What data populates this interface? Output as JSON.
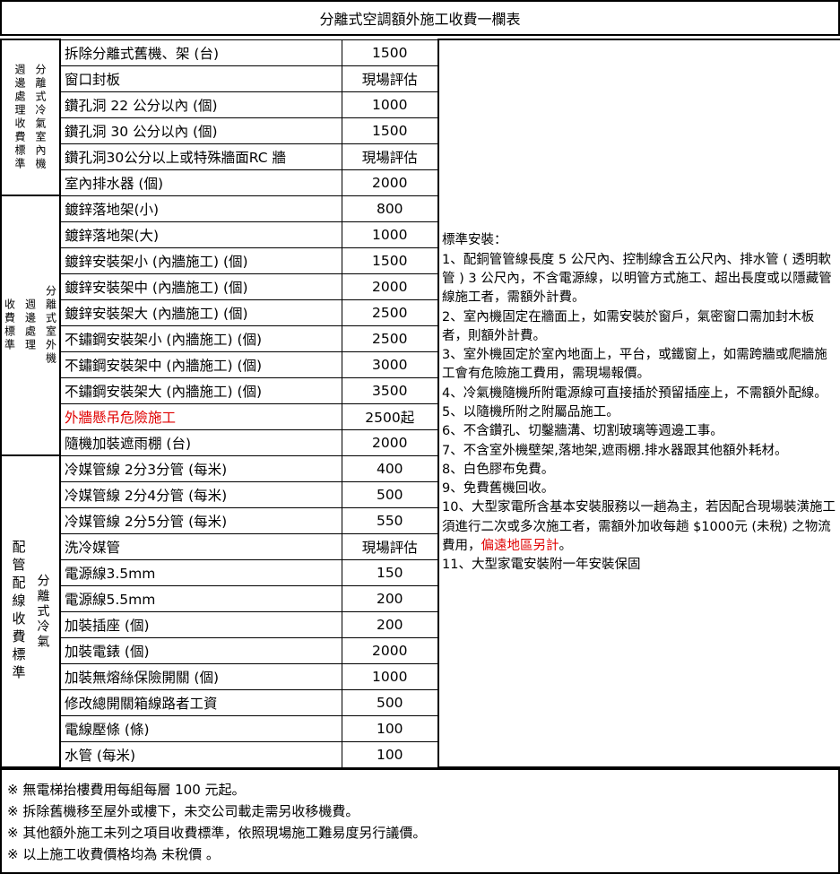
{
  "title": "分離式空調額外施工收費一欄表",
  "groups": [
    {
      "label_cols": [
        "分離式冷氣室內機",
        "週邊處理收費標準"
      ],
      "rows": [
        {
          "item": "拆除分離式舊機、架 (台)",
          "price": "1500"
        },
        {
          "item": "窗口封板",
          "price": "現場評估"
        },
        {
          "item": "鑽孔洞 22 公分以內 (個)",
          "price": "1000"
        },
        {
          "item": "鑽孔洞 30 公分以內 (個)",
          "price": "1500"
        },
        {
          "item": "鑽孔洞30公分以上或特殊牆面RC 牆",
          "price": "現場評估"
        },
        {
          "item": "室內排水器 (個)",
          "price": "2000"
        }
      ]
    },
    {
      "label_cols": [
        "分離式室外機",
        "週邊處理",
        "收費標準"
      ],
      "rows": [
        {
          "item": "鍍鋅落地架(小)",
          "price": "800"
        },
        {
          "item": "鍍鋅落地架(大)",
          "price": "1000"
        },
        {
          "item": "鍍鋅安裝架小 (內牆施工) (個)",
          "price": "1500"
        },
        {
          "item": "鍍鋅安裝架中 (內牆施工) (個)",
          "price": "2000"
        },
        {
          "item": "鍍鋅安裝架大 (內牆施工) (個)",
          "price": "2500"
        },
        {
          "item": "不鏽鋼安裝架小 (內牆施工) (個)",
          "price": "2500"
        },
        {
          "item": "不鏽鋼安裝架中 (內牆施工) (個)",
          "price": "3000"
        },
        {
          "item": "不鏽鋼安裝架大 (內牆施工) (個)",
          "price": "3500"
        },
        {
          "item": "外牆懸吊危險施工",
          "price": "2500起",
          "highlight": true
        },
        {
          "item": "隨機加裝遮雨棚 (台)",
          "price": "2000"
        }
      ]
    },
    {
      "label_cols": [
        "分離式冷氣",
        "配管配線收費標準"
      ],
      "rows": [
        {
          "item": "冷媒管線 2分3分管 (每米)",
          "price": "400"
        },
        {
          "item": "冷媒管線 2分4分管 (每米)",
          "price": "500"
        },
        {
          "item": "冷媒管線 2分5分管 (每米)",
          "price": "550"
        },
        {
          "item": "洗冷媒管",
          "price": "現場評估"
        },
        {
          "item": "電源線3.5mm",
          "price": "150"
        },
        {
          "item": "電源線5.5mm",
          "price": "200"
        },
        {
          "item": "加裝插座 (個)",
          "price": "200"
        },
        {
          "item": "加裝電錶 (個)",
          "price": "2000"
        },
        {
          "item": "加裝無熔絲保險開關 (個)",
          "price": "1000"
        },
        {
          "item": "修改總開關箱線路者工資",
          "price": "500"
        },
        {
          "item": "電線壓條 (條)",
          "price": "100"
        },
        {
          "item": "水管 (每米)",
          "price": "100"
        }
      ]
    }
  ],
  "notes": {
    "heading": "標準安裝：",
    "items": [
      "1、配銅管管線長度 5 公尺內、控制線含五公尺內、排水管 ( 透明軟管 ) 3 公尺內，不含電源線，以明管方式施工、超出長度或以隱藏管線施工者，需額外計費。",
      "2、室內機固定在牆面上，如需安裝於窗戶，氣密窗口需加封木板者，則額外計費。",
      "3、室外機固定於室內地面上，平台，或鐵窗上，如需跨牆或爬牆施工會有危險施工費用，需現場報價。",
      "4、冷氣機隨機所附電源線可直接插於預留插座上，不需額外配線。",
      "5、以隨機所附之附屬品施工。",
      "6、不含鑽孔、切鑿牆溝、切割玻璃等週邊工事。",
      "7、不含室外機壁架,落地架,遮雨棚.排水器跟其他額外耗材。",
      "8、白色膠布免費。",
      "9、免費舊機回收。"
    ],
    "item10_main": "10、大型家電所含基本安裝服務以一趟為主，若因配合現場裝潢施工須進行二次或多次施工者，需額外加收每趟 $1000元 (未稅) 之物流費用，",
    "item10_red": "偏遠地區另計",
    "item10_end": "。",
    "item11": "11、大型家電安裝附一年安裝保固"
  },
  "footer": [
    "※ 無電梯抬樓費用每組每層 100 元起。",
    "※ 拆除舊機移至屋外或樓下，未交公司載走需另收移機費。",
    "※ 其他額外施工未列之項目收費標準，依照現場施工難易度另行議價。",
    "※ 以上施工收費價格均為 未稅價 。"
  ],
  "colors": {
    "highlight": "#e00000"
  }
}
